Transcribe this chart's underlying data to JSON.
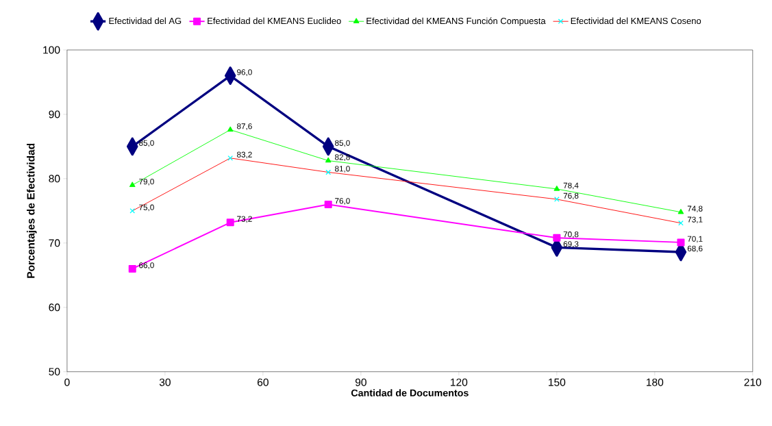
{
  "chart_data": {
    "type": "line",
    "xlabel": "Cantidad de Documentos",
    "ylabel": "Porcentajes de Efectividad",
    "x": [
      20,
      50,
      80,
      150,
      188
    ],
    "xlim": [
      0,
      210
    ],
    "xticks": [
      0,
      30,
      60,
      90,
      120,
      150,
      180,
      210
    ],
    "ylim": [
      50,
      100
    ],
    "yticks": [
      50,
      60,
      70,
      80,
      90,
      100
    ],
    "grid": false,
    "legend": "top",
    "data_labels": true,
    "series": [
      {
        "name": "Efectividad del AG",
        "color": "#000080",
        "marker": "diamond",
        "values": [
          85.0,
          96.0,
          85.0,
          69.3,
          68.6
        ],
        "value_labels": [
          "85,0",
          "96,0",
          "85,0",
          "69,3",
          "68,6"
        ]
      },
      {
        "name": "Efectividad del KMEANS Euclideo",
        "color": "#ff00ff",
        "marker": "square",
        "values": [
          66.0,
          73.2,
          76.0,
          70.8,
          70.1
        ],
        "value_labels": [
          "66,0",
          "73,2",
          "76,0",
          "70,8",
          "70,1"
        ]
      },
      {
        "name": "Efectividad del KMEANS Función Compuesta",
        "color": "#00ff00",
        "marker": "triangle",
        "values": [
          79.0,
          87.6,
          82.8,
          78.4,
          74.8
        ],
        "value_labels": [
          "79,0",
          "87,6",
          "82,8",
          "78,4",
          "74,8"
        ]
      },
      {
        "name": "Efectividad del KMEANS Coseno",
        "color": "#ff0000",
        "marker": "cross",
        "colors": [
          "#00ffff",
          "#00ffff",
          "#00ffff",
          "#00ffff",
          "#00ffff"
        ],
        "values": [
          75.0,
          83.2,
          81.0,
          76.8,
          73.1
        ],
        "value_labels": [
          "75,0",
          "83,2",
          "81,0",
          "76,8",
          "73,1"
        ]
      }
    ]
  }
}
